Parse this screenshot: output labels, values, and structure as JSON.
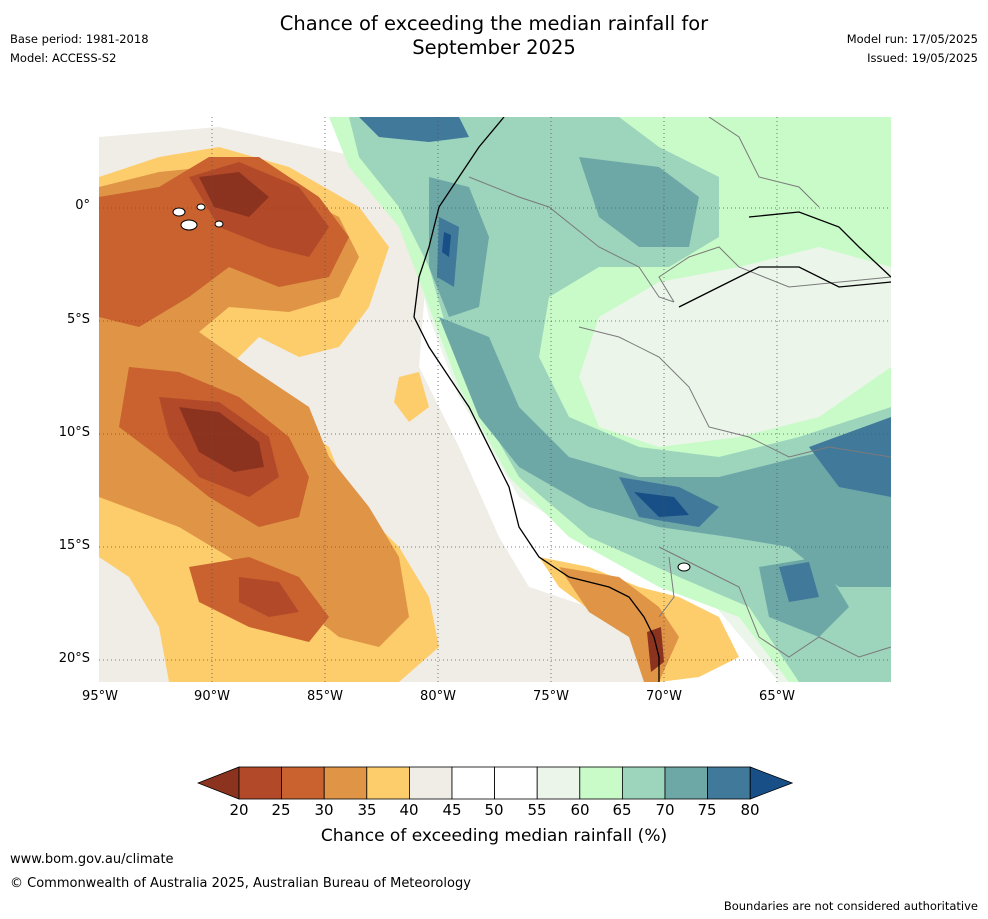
{
  "header": {
    "title_line1": "Chance of exceeding the median rainfall for",
    "title_line2": "September 2025",
    "base_period": "Base period: 1981-2018",
    "model": "Model: ACCESS-S2",
    "model_run": "Model run: 17/05/2025",
    "issued": "Issued: 19/05/2025"
  },
  "map": {
    "latitude_labels": [
      "0°",
      "5°S",
      "10°S",
      "15°S",
      "20°S"
    ],
    "longitude_labels": [
      "95°W",
      "90°W",
      "85°W",
      "80°W",
      "75°W",
      "70°W",
      "65°W"
    ]
  },
  "colorbar": {
    "title": "Chance of exceeding median rainfall (%)",
    "labels": [
      "20",
      "25",
      "30",
      "35",
      "40",
      "45",
      "50",
      "55",
      "60",
      "65",
      "70",
      "75",
      "80"
    ],
    "colors": {
      "below_20": "#8c3320",
      "c20_25": "#b24a2a",
      "c25_30": "#c9622f",
      "c30_35": "#df9446",
      "c35_40": "#fdcd6c",
      "c40_45": "#f0ece6",
      "c45_50": "#ffffff",
      "c50_55": "#ffffff",
      "c55_60": "#ebf5ea",
      "c60_65": "#c8fbc8",
      "c65_70": "#9dd4bc",
      "c70_75": "#6da8a7",
      "c75_80": "#41799b",
      "above_80": "#184f86"
    }
  },
  "footer": {
    "website": "www.bom.gov.au/climate",
    "copyright": "© Commonwealth of Australia 2025, Australian Bureau of Meteorology",
    "disclaimer": "Boundaries are not considered authoritative"
  }
}
